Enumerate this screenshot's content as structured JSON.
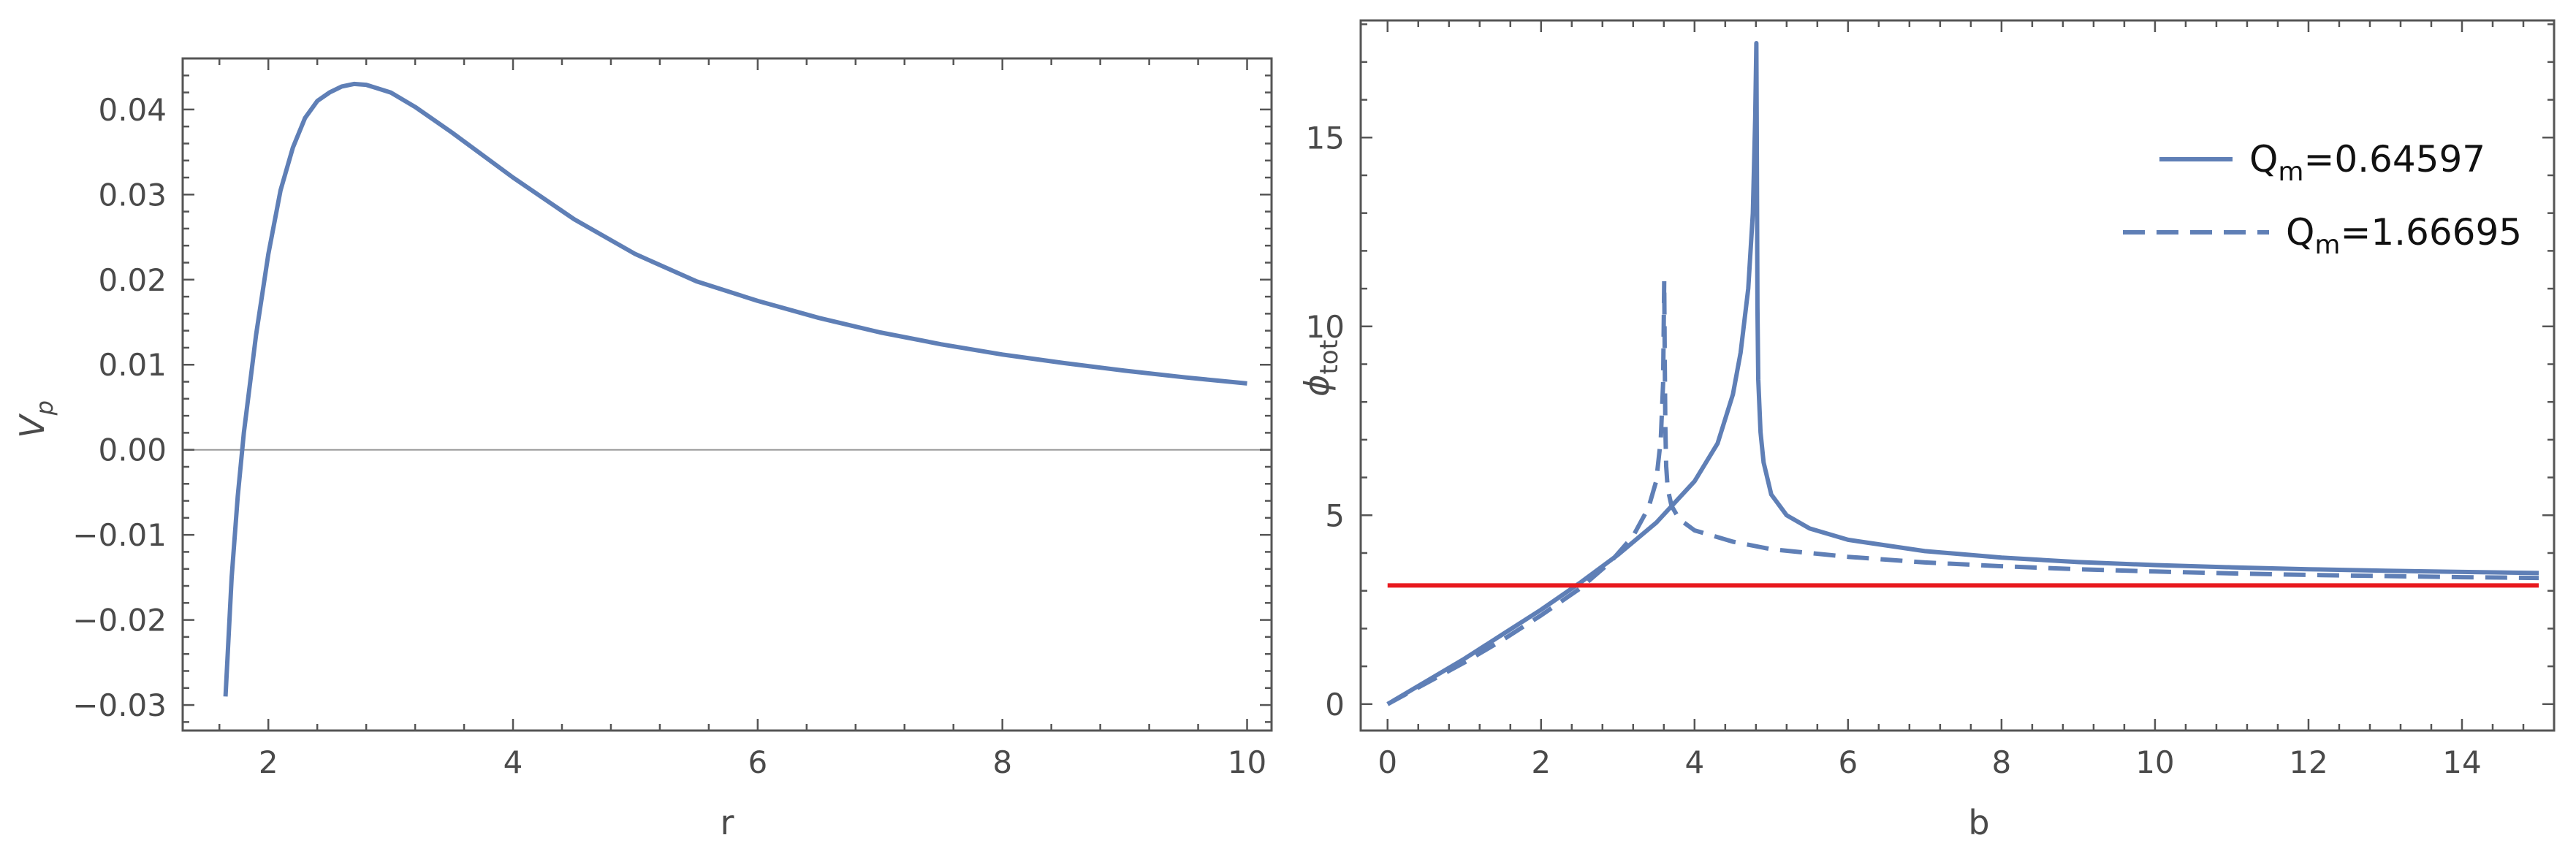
{
  "colors": {
    "curve": "#5f7fb6",
    "reference": "#e8191e",
    "frame": "#555555",
    "zero_line": "#9a9a9a",
    "text": "#4a4a4a"
  },
  "chart_data": [
    {
      "type": "line",
      "title": "",
      "xlabel": "r",
      "ylabel_main": "V",
      "ylabel_sub": "p",
      "xlim": [
        1.3,
        10.2
      ],
      "ylim": [
        -0.033,
        0.046
      ],
      "x_ticks": [
        2,
        4,
        6,
        8,
        10
      ],
      "x_tick_labels": [
        "2",
        "4",
        "6",
        "8",
        "10"
      ],
      "y_ticks": [
        -0.03,
        -0.02,
        -0.01,
        0.0,
        0.01,
        0.02,
        0.03,
        0.04
      ],
      "y_tick_labels": [
        "−0.03",
        "−0.02",
        "−0.01",
        "0.00",
        "0.01",
        "0.02",
        "0.03",
        "0.04"
      ],
      "zero_line": true,
      "grid": false,
      "series": [
        {
          "style": "solid",
          "x": [
            1.65,
            1.7,
            1.75,
            1.8,
            1.9,
            2.0,
            2.1,
            2.2,
            2.3,
            2.4,
            2.5,
            2.6,
            2.7,
            2.8,
            3.0,
            3.2,
            3.5,
            4.0,
            4.5,
            5.0,
            5.5,
            6.0,
            6.5,
            7.0,
            7.5,
            8.0,
            8.5,
            9.0,
            9.5,
            10.0
          ],
          "y": [
            -0.029,
            -0.015,
            -0.0055,
            0.002,
            0.0135,
            0.023,
            0.0305,
            0.0355,
            0.039,
            0.041,
            0.042,
            0.0427,
            0.043,
            0.0429,
            0.042,
            0.0403,
            0.0373,
            0.032,
            0.0271,
            0.023,
            0.0198,
            0.0175,
            0.0155,
            0.0138,
            0.0124,
            0.0112,
            0.0102,
            0.0093,
            0.0085,
            0.0078
          ]
        }
      ]
    },
    {
      "type": "line",
      "title": "",
      "xlabel": "b",
      "ylabel_main": "ϕ",
      "ylabel_sub": "tot",
      "xlim": [
        -0.35,
        15.2
      ],
      "ylim": [
        -0.7,
        18.1
      ],
      "x_ticks": [
        0,
        2,
        4,
        6,
        8,
        10,
        12,
        14
      ],
      "x_tick_labels": [
        "0",
        "2",
        "4",
        "6",
        "8",
        "10",
        "12",
        "14"
      ],
      "y_ticks": [
        0,
        5,
        10,
        15
      ],
      "y_tick_labels": [
        "0",
        "5",
        "10",
        "15"
      ],
      "grid": false,
      "legend_position": "top-right",
      "series": [
        {
          "name_main": "Q",
          "name_sub": "m",
          "name_value": "=0.64597",
          "style": "solid",
          "x": [
            0,
            0.5,
            1,
            1.5,
            2,
            2.5,
            3,
            3.5,
            4,
            4.3,
            4.5,
            4.6,
            4.7,
            4.76,
            4.79,
            4.805,
            4.812,
            4.82,
            4.83,
            4.86,
            4.9,
            5.0,
            5.2,
            5.5,
            6,
            7,
            8,
            9,
            10,
            11,
            12,
            13,
            14,
            15
          ],
          "y": [
            0,
            0.6,
            1.2,
            1.85,
            2.5,
            3.2,
            3.95,
            4.8,
            5.9,
            6.9,
            8.2,
            9.3,
            11.0,
            13.0,
            15.5,
            17.5,
            14.5,
            10.5,
            8.6,
            7.2,
            6.4,
            5.55,
            5.0,
            4.65,
            4.35,
            4.05,
            3.88,
            3.76,
            3.68,
            3.62,
            3.57,
            3.53,
            3.5,
            3.47
          ]
        },
        {
          "name_main": "Q",
          "name_sub": "m",
          "name_value": "=1.66695",
          "style": "dashed",
          "x": [
            0,
            0.5,
            1,
            1.5,
            2,
            2.5,
            2.9,
            3.2,
            3.4,
            3.5,
            3.56,
            3.59,
            3.605,
            3.612,
            3.62,
            3.63,
            3.65,
            3.7,
            3.8,
            4.0,
            4.5,
            5,
            6,
            7,
            8,
            9,
            10,
            11,
            12,
            13,
            14,
            15
          ],
          "y": [
            0,
            0.55,
            1.1,
            1.7,
            2.35,
            3.05,
            3.75,
            4.45,
            5.2,
            5.9,
            7.0,
            8.5,
            11.2,
            9.0,
            7.3,
            6.3,
            5.7,
            5.25,
            4.9,
            4.6,
            4.3,
            4.1,
            3.9,
            3.75,
            3.65,
            3.57,
            3.51,
            3.46,
            3.42,
            3.39,
            3.36,
            3.34
          ]
        }
      ],
      "reference_line": {
        "y": 3.14159,
        "x_from": 0,
        "x_to": 15
      }
    }
  ]
}
